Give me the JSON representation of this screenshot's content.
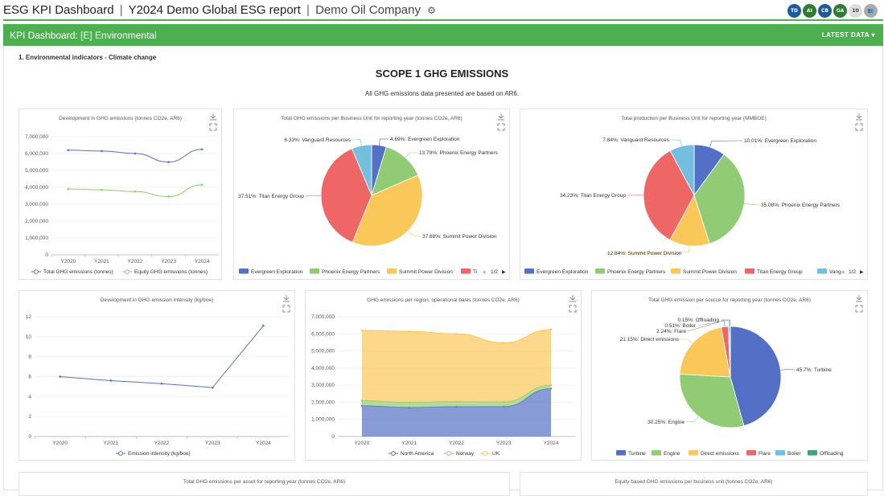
{
  "header": {
    "app_title": "ESG KPI Dashboard",
    "report": "Y2024 Demo Global ESG report",
    "company": "Demo Oil Company",
    "sep": "|",
    "gear": "⚙",
    "avatars": [
      {
        "initials": "TD",
        "color": "#1a5c9e"
      },
      {
        "initials": "AI",
        "color": "#2e7d32"
      },
      {
        "initials": "CB",
        "color": "#1a5c9e"
      },
      {
        "initials": "GA",
        "color": "#2e7d32"
      },
      {
        "initials": "10",
        "color": "#dddddd"
      },
      {
        "initials": "👥",
        "color": "#aaaaaa"
      }
    ]
  },
  "kpi_bar": {
    "title": "KPI Dashboard: [E] Environmental",
    "latest": "LATEST DATA ▾"
  },
  "section_title": "1. Environmental indicators - Climate change",
  "scope_title": "SCOPE 1 GHG EMISSIONS",
  "scope_sub": "All GHG emissions data presented are based on AR6.",
  "colors": {
    "blue": "#5470c6",
    "green": "#91cc75",
    "yellow": "#fac858",
    "red": "#ee6666",
    "cyan": "#73c0de",
    "darkgreen": "#3ba272"
  },
  "chart_data": [
    {
      "type": "line",
      "title": "Development in GHG emissions (tonnes CO2e, AR6)",
      "categories": [
        "Y2020",
        "Y2021",
        "Y2022",
        "Y2023",
        "Y2024"
      ],
      "yticks": [
        "0",
        "1,000,000",
        "2,000,000",
        "3,000,000",
        "4,000,000",
        "5,000,000",
        "6,000,000",
        "7,000,000"
      ],
      "ylim": [
        0,
        7000000
      ],
      "series": [
        {
          "name": "Total GHG  emissions (tonnes)",
          "values": [
            6200000,
            6150000,
            6000000,
            5500000,
            6250000
          ]
        },
        {
          "name": "Equity GHG emissions (tonnes)",
          "values": [
            3900000,
            3850000,
            3750000,
            3450000,
            4150000
          ]
        }
      ]
    },
    {
      "type": "pie",
      "title": "Total GHG emissions per Business Unit for reporting year (tonnes CO2e, AR6)",
      "slices": [
        {
          "name": "Evergreen Exploration",
          "value": 4.69,
          "label": "4.69%: Evergreen Exploration"
        },
        {
          "name": "Phoenix Energy Partners",
          "value": 13.79,
          "label": "13.79%: Phoenix Energy Partners"
        },
        {
          "name": "Summit Power Division",
          "value": 37.68,
          "label": "37.68%: Summit Power Division"
        },
        {
          "name": "Titan Energy Group",
          "value": 37.51,
          "label": "37.51%: Titan Energy Group"
        },
        {
          "name": "Vanguard Resources",
          "value": 6.33,
          "label": "6.33%: Vanguard Resources"
        }
      ],
      "legend": [
        "Evergreen Exploration",
        "Phoenix Energy Partners",
        "Summit Power Division",
        "Ti"
      ],
      "pager": "1/2"
    },
    {
      "type": "pie",
      "title": "Total production per Business Unit for reporting year (MMBOE)",
      "slices": [
        {
          "name": "Evergreen Exploration",
          "value": 10.01,
          "label": "10.01%: Evergreen Exploration"
        },
        {
          "name": "Phoenix Energy Partners",
          "value": 35.08,
          "label": "35.08%: Phoenix Energy Partners"
        },
        {
          "name": "Summit Power Division",
          "value": 12.84,
          "label": "12.84%: Summit Power Division"
        },
        {
          "name": "Titan Energy Group",
          "value": 34.23,
          "label": "34.23%: Titan Energy Group"
        },
        {
          "name": "Vanguard Resources",
          "value": 7.84,
          "label": "7.84%: Vanguard Resources"
        }
      ],
      "legend": [
        "Evergreen Exploration",
        "Phoenix Energy Partners",
        "Summit Power Division",
        "Titan Energy Group",
        "Vang"
      ],
      "pager": "1/2"
    },
    {
      "type": "line",
      "title": "Development in GHG emission intensity (kg/boe)",
      "categories": [
        "Y2020",
        "Y2021",
        "Y2022",
        "Y2023",
        "Y2024"
      ],
      "yticks": [
        "0",
        "2",
        "4",
        "6",
        "8",
        "10",
        "12"
      ],
      "ylim": [
        0,
        12
      ],
      "series": [
        {
          "name": "Emission intensity (kg/boe)",
          "values": [
            6.0,
            5.6,
            5.3,
            4.9,
            11.1
          ]
        }
      ]
    },
    {
      "type": "area",
      "title": "GHG emissions per region, operational basis (tonnes CO2e, AR6)",
      "categories": [
        "Y2020",
        "Y2021",
        "Y2022",
        "Y2023",
        "Y2024"
      ],
      "yticks": [
        "0",
        "1,000,000",
        "2,000,000",
        "3,000,000",
        "4,000,000",
        "5,000,000",
        "6,000,000",
        "7,000,000"
      ],
      "ylim": [
        0,
        7000000
      ],
      "stacked": true,
      "series": [
        {
          "name": "North America",
          "values": [
            1800000,
            1700000,
            1750000,
            1750000,
            2800000
          ]
        },
        {
          "name": "Norway",
          "values": [
            300000,
            300000,
            300000,
            280000,
            200000
          ]
        },
        {
          "name": "UK",
          "values": [
            4100000,
            4150000,
            3950000,
            3450000,
            3250000
          ]
        }
      ]
    },
    {
      "type": "pie",
      "title": "Total GHG emission per source for reporting year (tonnes CO2e, AR6)",
      "slices": [
        {
          "name": "Turbine",
          "value": 45.7,
          "label": "45.7%: Turbine"
        },
        {
          "name": "Engine",
          "value": 30.25,
          "label": "30.25%: Engine"
        },
        {
          "name": "Direct emissions",
          "value": 21.15,
          "label": "21.15%: Direct emissions"
        },
        {
          "name": "Flare",
          "value": 2.24,
          "label": "2.24%: Flare"
        },
        {
          "name": "Boiler",
          "value": 0.51,
          "label": "0.51%: Boiler"
        },
        {
          "name": "Offloading",
          "value": 0.15,
          "label": "0.15%: Offloading"
        }
      ],
      "legend": [
        "Turbine",
        "Engine",
        "Direct emissions",
        "Flare",
        "Boiler",
        "Offloading"
      ]
    }
  ],
  "bottom_cards": [
    {
      "title": "Total GHG emissions per asset for reporting year (tonnes CO2e, AR6)"
    },
    {
      "title": "Equity based GHG emissions per business unit (tonnes CO2e, AR6)"
    }
  ]
}
